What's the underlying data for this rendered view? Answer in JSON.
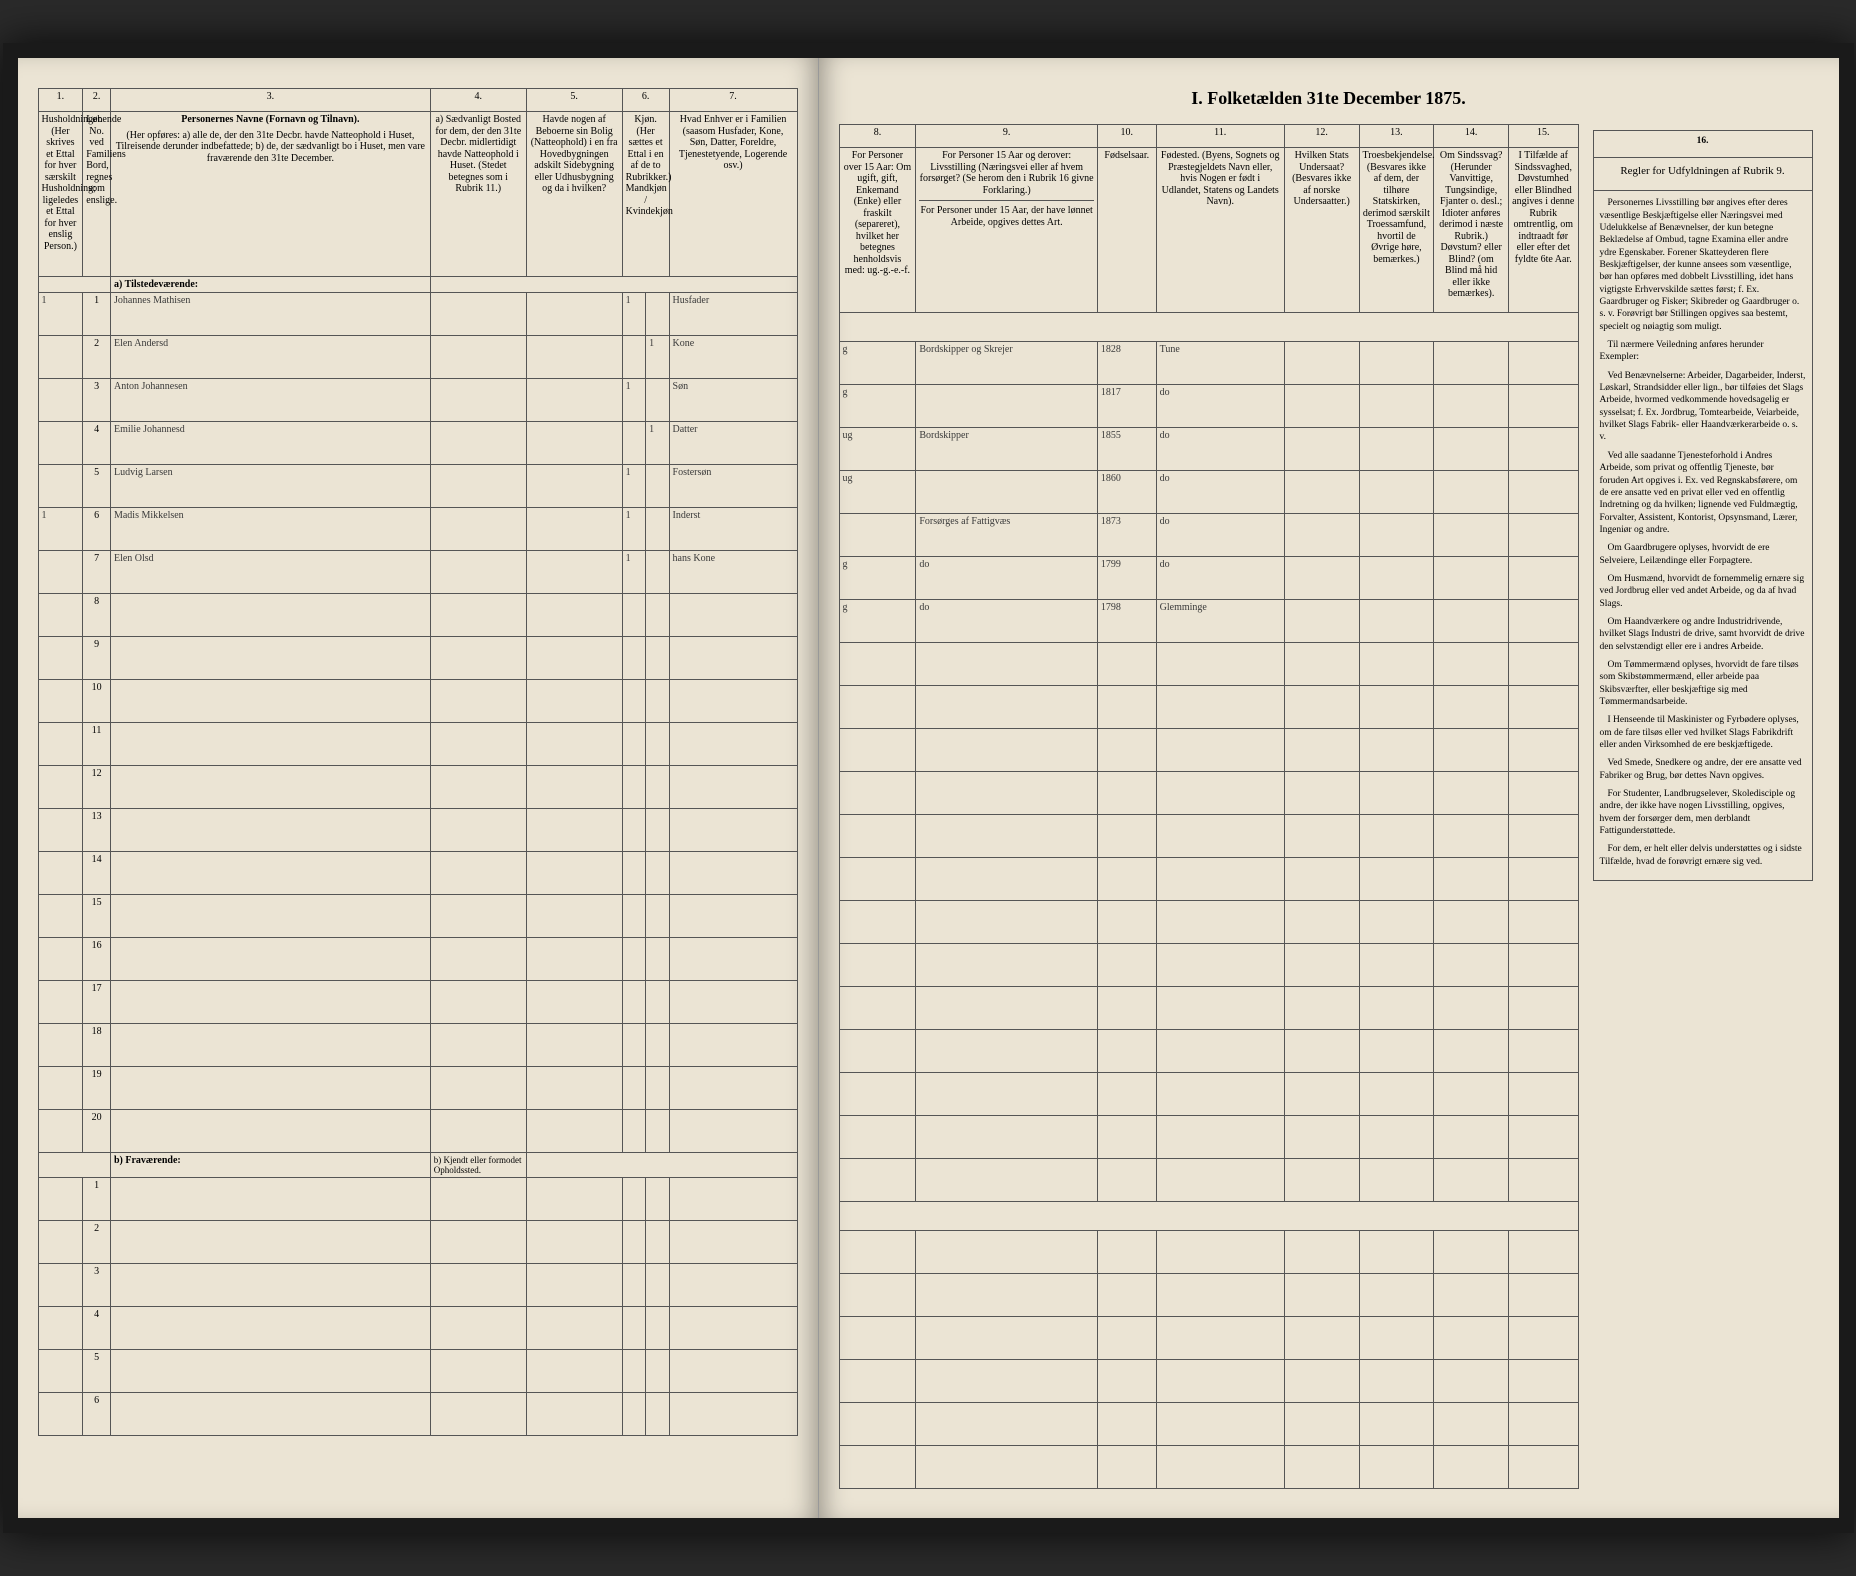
{
  "title": "I. Folketælden 31te December 1875.",
  "colnums_left": [
    "1.",
    "2.",
    "3.",
    "4.",
    "5.",
    "6.",
    "7."
  ],
  "colnums_right": [
    "8.",
    "9.",
    "10.",
    "11.",
    "12.",
    "13.",
    "14.",
    "15.",
    "16."
  ],
  "headers_left": {
    "c1": "Husholdninger. (Her skrives et Ettal for hver særskilt Husholdning; ligeledes et Ettal for hver enslig Person.)",
    "c2": "Løbende No. ved Familiens Bord, regnes som enslige.",
    "c3_title": "Personernes Navne (Fornavn og Tilnavn).",
    "c3_sub": "(Her opføres: a) alle de, der den 31te Decbr. havde Natteophold i Huset, Tilreisende derunder indbefattede; b) de, der sædvanligt bo i Huset, men vare fraværende den 31te December.",
    "c4": "a) Sædvanligt Bosted for dem, der den 31te Decbr. midlertidigt havde Natteophold i Huset. (Stedet betegnes som i Rubrik 11.)",
    "c5": "Havde nogen af Beboerne sin Bolig (Natteophold) i en fra Hovedbygningen adskilt Sidebygning eller Udhusbygning og da i hvilken?",
    "c6": "Kjøn. (Her sættes et Ettal i en af de to Rubrikker.) Mandkjøn / Kvindekjøn",
    "c7": "Hvad Enhver er i Familien (saasom Husfader, Kone, Søn, Datter, Foreldre, Tjenestetyende, Logerende osv.)"
  },
  "headers_right": {
    "c8": "For Personer over 15 Aar: Om ugift, gift, Enkemand (Enke) eller fraskilt (separeret), hvilket her betegnes henholdsvis med: ug.-g.-e.-f.",
    "c9_title": "For Personer 15 Aar og derover: Livsstilling (Næringsvei eller af hvem forsørget? (Se herom den i Rubrik 16 givne Forklaring.)",
    "c9_sub": "For Personer under 15 Aar, der have lønnet Arbeide, opgives dettes Art.",
    "c10": "Fødselsaar.",
    "c11": "Fødested. (Byens, Sognets og Præstegjeldets Navn eller, hvis Nogen er født i Udlandet, Statens og Landets Navn).",
    "c12": "Hvilken Stats Undersaat? (Besvares ikke af norske Undersaatter.)",
    "c13": "Troesbekjendelse. (Besvares ikke af dem, der tilhøre Statskirken, derimod særskilt Troessamfund, hvortil de Øvrige høre, bemærkes.)",
    "c14": "Om Sindssvag? (Herunder Vanvittige, Tungsindige, Fjanter o. desl.; Idioter anføres derimod i næste Rubrik.) Døvstum? eller Blind? (om Blind må hid eller ikke bemærkes).",
    "c15": "I Tilfælde af Sindssvaghed, Døvstumhed eller Blindhed angives i denne Rubrik omtrentlig, om indtraadt før eller efter det fyldte 6te Aar.",
    "c16": "Regler for Udfyldningen af Rubrik 9."
  },
  "section_a": "a) Tilstedeværende:",
  "section_b": "b) Fraværende:",
  "section_b_col4": "b) Kjendt eller formodet Opholdssted.",
  "rows": [
    {
      "h": "1",
      "n": "1",
      "name": "Johannes Mathisen",
      "c4": "",
      "c5": "",
      "c6": "1",
      "c7": "Husfader",
      "c8": "g",
      "c9": "Bordskipper og Skrejer",
      "c10": "1828",
      "c11": "Tune",
      "c12": "",
      "c13": "",
      "c14": "",
      "c15": ""
    },
    {
      "h": "",
      "n": "2",
      "name": "Elen Andersd",
      "c4": "",
      "c5": "",
      "c6": "1",
      "c7": "Kone",
      "c8": "g",
      "c9": "",
      "c10": "1817",
      "c11": "do",
      "c12": "",
      "c13": "",
      "c14": "",
      "c15": ""
    },
    {
      "h": "",
      "n": "3",
      "name": "Anton Johannesen",
      "c4": "",
      "c5": "",
      "c6": "1",
      "c7": "Søn",
      "c8": "ug",
      "c9": "Bordskipper",
      "c10": "1855",
      "c11": "do",
      "c12": "",
      "c13": "",
      "c14": "",
      "c15": ""
    },
    {
      "h": "",
      "n": "4",
      "name": "Emilie Johannesd",
      "c4": "",
      "c5": "",
      "c6": "1",
      "c7": "Datter",
      "c8": "ug",
      "c9": "",
      "c10": "1860",
      "c11": "do",
      "c12": "",
      "c13": "",
      "c14": "",
      "c15": ""
    },
    {
      "h": "",
      "n": "5",
      "name": "Ludvig Larsen",
      "c4": "",
      "c5": "",
      "c6": "1",
      "c7": "Fostersøn",
      "c8": "",
      "c9": "Forsørges af Fattigvæs",
      "c10": "1873",
      "c11": "do",
      "c12": "",
      "c13": "",
      "c14": "",
      "c15": ""
    },
    {
      "h": "1",
      "n": "6",
      "name": "Madis Mikkelsen",
      "c4": "",
      "c5": "",
      "c6": "1",
      "c7": "Inderst",
      "c8": "g",
      "c9": "do",
      "c10": "1799",
      "c11": "do",
      "c12": "",
      "c13": "",
      "c14": "",
      "c15": ""
    },
    {
      "h": "",
      "n": "7",
      "name": "Elen Olsd",
      "c4": "",
      "c5": "",
      "c6": "1",
      "c7": "hans Kone",
      "c8": "g",
      "c9": "do",
      "c10": "1798",
      "c11": "Glemminge",
      "c12": "",
      "c13": "",
      "c14": "",
      "c15": ""
    }
  ],
  "instructions": {
    "head": "Regler for Udfyldningen af Rubrik 9.",
    "paras": [
      "Personernes Livsstilling bør angives efter deres væsentlige Beskjæftigelse eller Næringsvei med Udelukkelse af Benævnelser, der kun betegne Beklædelse af Ombud, tagne Examina eller andre ydre Egenskaber. Forener Skatteyderen flere Beskjæftigelser, der kunne ansees som væsentlige, bør han opføres med dobbelt Livsstilling, idet hans vigtigste Erhvervskilde sættes først; f. Ex. Gaardbruger og Fisker; Skibreder og Gaardbruger o. s. v. Forøvrigt bør Stillingen opgives saa bestemt, specielt og nøiagtig som muligt.",
      "Til nærmere Veiledning anføres herunder Exempler:",
      "Ved Benævnelserne: Arbeider, Dagarbeider, Inderst, Løskarl, Strandsidder eller lign., bør tilføies det Slags Arbeide, hvormed vedkommende hovedsagelig er sysselsat; f. Ex. Jordbrug, Tomtearbeide, Veiarbeide, hvilket Slags Fabrik- eller Haandværkerarbeide o. s. v.",
      "Ved alle saadanne Tjenesteforhold i Andres Arbeide, som privat og offentlig Tjeneste, bør foruden Art opgives i. Ex. ved Regnskabsførere, om de ere ansatte ved en privat eller ved en offentlig Indretning og da hvilken; lignende ved Fuldmægtig, Forvalter, Assistent, Kontorist, Opsynsmand, Lærer, Ingeniør og andre.",
      "Om Gaardbrugere oplyses, hvorvidt de ere Selveiere, Leilændinge eller Forpagtere.",
      "Om Husmænd, hvorvidt de fornemmelig ernære sig ved Jordbrug eller ved andet Arbeide, og da af hvad Slags.",
      "Om Haandværkere og andre Industridrivende, hvilket Slags Industri de drive, samt hvorvidt de drive den selvstændigt eller ere i andres Arbeide.",
      "Om Tømmermænd oplyses, hvorvidt de fare tilsøs som Skibstømmermænd, eller arbeide paa Skibsværfter, eller beskjæftige sig med Tømmermandsarbeide.",
      "I Henseende til Maskinister og Fyrbødere oplyses, om de fare tilsøs eller ved hvilket Slags Fabrikdrift eller anden Virksomhed de ere beskjæftigede.",
      "Ved Smede, Snedkere og andre, der ere ansatte ved Fabriker og Brug, bør dettes Navn opgives.",
      "For Studenter, Landbrugselever, Skoledisciple og andre, der ikke have nogen Livsstilling, opgives, hvem der forsørger dem, men derblandt Fattigunderstøttede.",
      "For dem, er helt eller delvis understøttes og i sidste Tilfælde, hvad de forøvrigt ernære sig ved."
    ]
  },
  "style": {
    "paper": "#ebe4d4",
    "ink": "#3a3a3a",
    "border": "#555"
  }
}
